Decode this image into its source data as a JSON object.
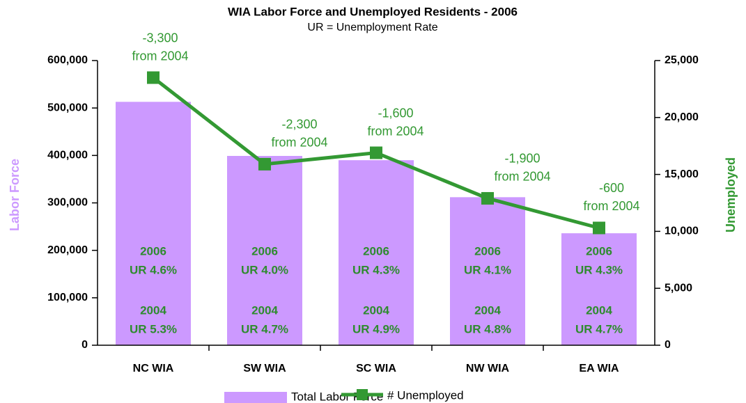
{
  "chart_data": {
    "type": "bar-line",
    "title": "WIA Labor Force and Unemployed Residents - 2006",
    "subtitle": "UR = Unemployment Rate",
    "y_label": "Labor Force",
    "y2_label": "Unemployed",
    "categories": [
      "NC WIA",
      "SW WIA",
      "SC WIA",
      "NW WIA",
      "EA WIA"
    ],
    "series": [
      {
        "name": "Total Labor Force",
        "color": "#cc99ff",
        "type": "bar",
        "values": [
          513000,
          399000,
          390000,
          312000,
          236000
        ]
      },
      {
        "name": "# Unemployed",
        "color": "#339933",
        "type": "line",
        "axis": "y2",
        "values": [
          23500,
          15900,
          16900,
          12900,
          10300
        ]
      }
    ],
    "annotations": [
      [
        "-3,300",
        "from 2004"
      ],
      [
        "-2,300",
        "from 2004"
      ],
      [
        "-1,600",
        "from 2004"
      ],
      [
        "-1,900",
        "from 2004"
      ],
      [
        "-600",
        "from 2004"
      ]
    ],
    "bar_labels": [
      [
        [
          "2006",
          "UR 4.6%"
        ],
        [
          "2004",
          "UR 5.3%"
        ]
      ],
      [
        [
          "2006",
          "UR 4.0%"
        ],
        [
          "2004",
          "UR 4.7%"
        ]
      ],
      [
        [
          "2006",
          "UR 4.3%"
        ],
        [
          "2004",
          "UR 4.9%"
        ]
      ],
      [
        [
          "2006",
          "UR 4.1%"
        ],
        [
          "2004",
          "UR 4.8%"
        ]
      ],
      [
        [
          "2006",
          "UR 4.3%"
        ],
        [
          "2004",
          "UR 4.7%"
        ]
      ]
    ],
    "ylim": [
      0,
      600000
    ],
    "yticks": [
      0,
      {
        "value": 100000,
        "label": "100,000"
      },
      {
        "value": 200000,
        "label": "200,000"
      },
      {
        "value": 300000,
        "label": "300,000"
      },
      {
        "value": 400000,
        "label": "400,000"
      },
      {
        "value": 500000,
        "label": "500,000"
      },
      {
        "value": 600000,
        "label": "600,000"
      }
    ],
    "y2lim": [
      0,
      25000
    ],
    "y2ticks": [
      0,
      {
        "value": 5000,
        "label": "5,000"
      },
      {
        "value": 10000,
        "label": "10,000"
      },
      {
        "value": 15000,
        "label": "15,000"
      },
      {
        "value": 20000,
        "label": "20,000"
      },
      {
        "value": 25000,
        "label": "25,000"
      }
    ],
    "grid": false
  }
}
